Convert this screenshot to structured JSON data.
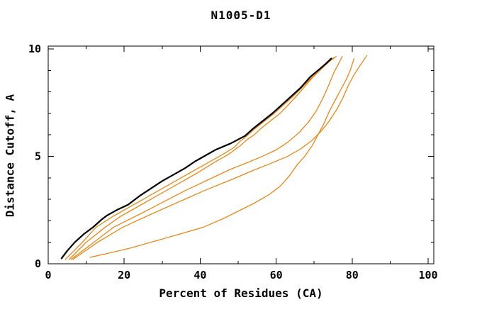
{
  "title": "N1005-D1",
  "axes": {
    "x_label": "Percent of Residues (CA)",
    "y_label": "Distance Cutoff, A"
  },
  "chart_data": {
    "type": "line",
    "title": "N1005-D1",
    "xlabel": "Percent of Residues (CA)",
    "ylabel": "Distance Cutoff, A",
    "xlim": [
      0,
      101
    ],
    "ylim": [
      0,
      10.1
    ],
    "grid": false,
    "legend": "none",
    "frame": "full-box-with-mirrored-inward-ticks",
    "x_major_ticks": [
      0,
      20,
      40,
      60,
      80,
      100
    ],
    "x_minor_ticks": [
      10,
      30,
      50,
      70,
      90
    ],
    "y_major_ticks": [
      0,
      5,
      10
    ],
    "y_minor_ticks": [
      1,
      2,
      3,
      4,
      6,
      7,
      8,
      9
    ],
    "colors": {
      "reference": "#000000",
      "model": "#ee7d00"
    },
    "series": [
      {
        "name": "orange-curve-1",
        "color": "#ee7d00",
        "width": 1.2,
        "points": [
          [
            4.5,
            0.2
          ],
          [
            9,
            1.0
          ],
          [
            12.6,
            1.7
          ],
          [
            17,
            2.2
          ],
          [
            22,
            2.7
          ],
          [
            27,
            3.2
          ],
          [
            32,
            3.7
          ],
          [
            37,
            4.2
          ],
          [
            42,
            4.7
          ],
          [
            46,
            5.1
          ],
          [
            48.8,
            5.4
          ],
          [
            50.5,
            5.7
          ],
          [
            52.3,
            5.95
          ],
          [
            54.5,
            6.3
          ],
          [
            57,
            6.65
          ],
          [
            59.5,
            7.0
          ],
          [
            62,
            7.4
          ],
          [
            64.5,
            7.8
          ],
          [
            66.8,
            8.2
          ],
          [
            69,
            8.6
          ],
          [
            71.5,
            9.0
          ],
          [
            73.3,
            9.3
          ],
          [
            75.2,
            9.6
          ]
        ]
      },
      {
        "name": "orange-curve-2",
        "color": "#ee7d00",
        "width": 1.2,
        "points": [
          [
            5.5,
            0.2
          ],
          [
            10,
            1.0
          ],
          [
            15,
            1.7
          ],
          [
            19,
            2.2
          ],
          [
            24,
            2.7
          ],
          [
            29,
            3.2
          ],
          [
            34,
            3.7
          ],
          [
            39,
            4.2
          ],
          [
            43.5,
            4.7
          ],
          [
            47.5,
            5.1
          ],
          [
            50.6,
            5.5
          ],
          [
            52.5,
            5.8
          ],
          [
            54.2,
            6.0
          ],
          [
            56,
            6.3
          ],
          [
            58.5,
            6.65
          ],
          [
            61,
            7.0
          ],
          [
            63.2,
            7.4
          ],
          [
            65.3,
            7.8
          ],
          [
            67.3,
            8.2
          ],
          [
            69.5,
            8.65
          ],
          [
            71.5,
            9.0
          ],
          [
            73.5,
            9.35
          ],
          [
            75.8,
            9.65
          ]
        ]
      },
      {
        "name": "orange-curve-3",
        "color": "#ee7d00",
        "width": 1.2,
        "points": [
          [
            6,
            0.2
          ],
          [
            12,
            1.0
          ],
          [
            17.2,
            1.7
          ],
          [
            24,
            2.3
          ],
          [
            30,
            2.85
          ],
          [
            36,
            3.4
          ],
          [
            42,
            3.9
          ],
          [
            48,
            4.4
          ],
          [
            53,
            4.75
          ],
          [
            57,
            5.05
          ],
          [
            60,
            5.3
          ],
          [
            63,
            5.65
          ],
          [
            66,
            6.1
          ],
          [
            68.5,
            6.6
          ],
          [
            70.5,
            7.1
          ],
          [
            72.3,
            7.7
          ],
          [
            73.8,
            8.3
          ],
          [
            75.2,
            8.9
          ],
          [
            76.4,
            9.3
          ],
          [
            77.4,
            9.65
          ]
        ]
      },
      {
        "name": "orange-curve-4",
        "color": "#ee7d00",
        "width": 1.2,
        "points": [
          [
            6.5,
            0.2
          ],
          [
            13,
            1.0
          ],
          [
            19.6,
            1.7
          ],
          [
            27,
            2.3
          ],
          [
            34,
            2.85
          ],
          [
            41,
            3.4
          ],
          [
            48,
            3.9
          ],
          [
            54,
            4.35
          ],
          [
            59,
            4.7
          ],
          [
            63,
            5.0
          ],
          [
            66.5,
            5.35
          ],
          [
            69.5,
            5.75
          ],
          [
            72,
            6.2
          ],
          [
            74,
            6.65
          ],
          [
            76,
            7.2
          ],
          [
            77.5,
            7.7
          ],
          [
            79,
            8.3
          ],
          [
            80.5,
            8.8
          ],
          [
            82,
            9.2
          ],
          [
            83.9,
            9.7
          ]
        ]
      },
      {
        "name": "orange-curve-5-outlier",
        "color": "#ee7d00",
        "width": 1.2,
        "points": [
          [
            11,
            0.3
          ],
          [
            16,
            0.5
          ],
          [
            22,
            0.75
          ],
          [
            28,
            1.05
          ],
          [
            34,
            1.35
          ],
          [
            40.8,
            1.7
          ],
          [
            46,
            2.1
          ],
          [
            50,
            2.45
          ],
          [
            54,
            2.8
          ],
          [
            58,
            3.2
          ],
          [
            61,
            3.6
          ],
          [
            63.5,
            4.1
          ],
          [
            65.5,
            4.6
          ],
          [
            67.5,
            5.0
          ],
          [
            69.5,
            5.5
          ],
          [
            71,
            6.0
          ],
          [
            72.5,
            6.5
          ],
          [
            74,
            7.1
          ],
          [
            75.5,
            7.6
          ],
          [
            77,
            8.1
          ],
          [
            78.5,
            8.6
          ],
          [
            79.5,
            9.0
          ],
          [
            80.5,
            9.55
          ]
        ]
      },
      {
        "name": "black-reference-curve",
        "color": "#000000",
        "width": 2.2,
        "points": [
          [
            3.5,
            0.25
          ],
          [
            5,
            0.6
          ],
          [
            7,
            1.0
          ],
          [
            9.5,
            1.4
          ],
          [
            11.8,
            1.7
          ],
          [
            14,
            2.05
          ],
          [
            15.5,
            2.25
          ],
          [
            18,
            2.5
          ],
          [
            21,
            2.75
          ],
          [
            24,
            3.15
          ],
          [
            27,
            3.5
          ],
          [
            30,
            3.85
          ],
          [
            33,
            4.15
          ],
          [
            36,
            4.45
          ],
          [
            38.5,
            4.75
          ],
          [
            40.5,
            4.95
          ],
          [
            44,
            5.3
          ],
          [
            48,
            5.6
          ],
          [
            51.8,
            5.95
          ],
          [
            54,
            6.3
          ],
          [
            56.5,
            6.65
          ],
          [
            59,
            7.0
          ],
          [
            61.5,
            7.4
          ],
          [
            64,
            7.8
          ],
          [
            66.5,
            8.2
          ],
          [
            69,
            8.7
          ],
          [
            71,
            9.0
          ],
          [
            73,
            9.3
          ],
          [
            74.5,
            9.55
          ]
        ]
      }
    ]
  }
}
